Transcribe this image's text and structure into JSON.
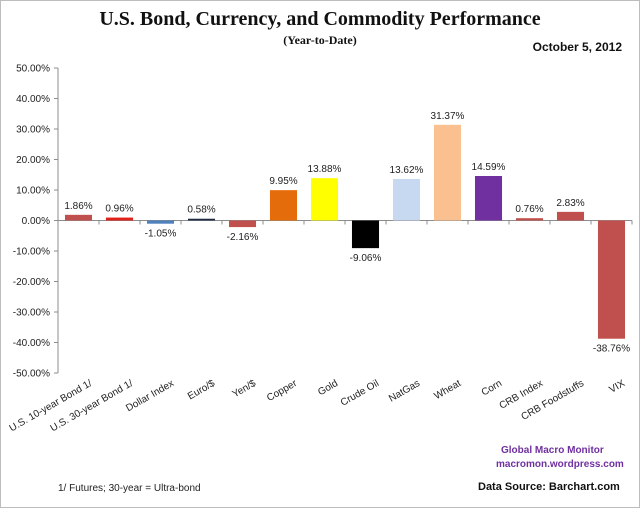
{
  "header": {
    "title": "U.S. Bond, Currency, and Commodity Performance",
    "subtitle": "(Year-to-Date)",
    "date": "October 5, 2012"
  },
  "footer": {
    "footnote": "1/  Futures; 30-year = Ultra-bond",
    "brand": "Global Macro Monitor",
    "site": "macromon.wordpress.com",
    "source": "Data Source:  Barchart.com"
  },
  "chart_data": {
    "type": "bar",
    "title": "U.S. Bond, Currency, and Commodity Performance",
    "subtitle": "(Year-to-Date)",
    "xlabel": "",
    "ylabel": "",
    "ylim": [
      -50,
      50
    ],
    "yticks": [
      50,
      40,
      30,
      20,
      10,
      0,
      -10,
      -20,
      -30,
      -40,
      -50
    ],
    "ytick_labels": [
      "50.00%",
      "40.00%",
      "30.00%",
      "20.00%",
      "10.00%",
      "0.00%",
      "-10.00%",
      "-20.00%",
      "-30.00%",
      "-40.00%",
      "-50.00%"
    ],
    "grid": false,
    "legend": "none",
    "categories": [
      "U.S. 10-year Bond 1/",
      "U.S. 30-year Bond 1/",
      "Dollar Index",
      "Euro/$",
      "Yen/$",
      "Copper",
      "Gold",
      "Crude Oil",
      "NatGas",
      "Wheat",
      "Corn",
      "CRB Index",
      "CRB Foodstuffs",
      "VIX"
    ],
    "values": [
      1.86,
      0.96,
      -1.05,
      0.58,
      -2.16,
      9.95,
      13.88,
      -9.06,
      13.62,
      31.37,
      14.59,
      0.76,
      2.83,
      -38.76
    ],
    "value_labels": [
      "1.86%",
      "0.96%",
      "-1.05%",
      "0.58%",
      "-2.16%",
      "9.95%",
      "13.88%",
      "-9.06%",
      "13.62%",
      "31.37%",
      "14.59%",
      "0.76%",
      "2.83%",
      "-38.76%"
    ],
    "colors": [
      "#c0504d",
      "#e0201b",
      "#4f81bd",
      "#1f2a44",
      "#c0504d",
      "#e46c0a",
      "#ffff00",
      "#000000",
      "#c6d9f1",
      "#fac090",
      "#7030a0",
      "#c0504d",
      "#c0504d",
      "#c0504d"
    ]
  }
}
